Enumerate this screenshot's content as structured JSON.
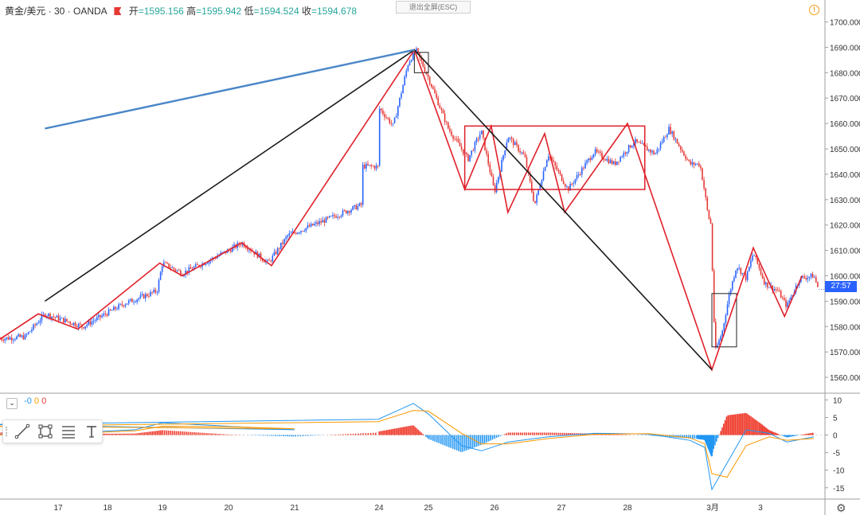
{
  "header": {
    "symbol": "黄金/美元 · 30 · OANDA",
    "open_label": "开",
    "open_value": "=1595.156",
    "high_label": "高",
    "high_value": "=1595.942",
    "low_label": "低",
    "low_value": "=1594.524",
    "close_label": "收",
    "close_value": "=1594.678"
  },
  "exit_fullscreen": "退出全屏(ESC)",
  "alert_icon": "!",
  "current_price_countdown": "27:57",
  "macd_legend": {
    "chevron": "⌄",
    "v1": "-0",
    "v2": "0",
    "v3": "0"
  },
  "settings_icon": "⚙",
  "colors": {
    "up": "#2962ff",
    "down": "#e53935",
    "pattern": "#e0202a",
    "trend": "#1a1a1a",
    "upper_line": "#4a86c8",
    "macd_pos": "#ef3b2c",
    "macd_neg": "#2196f3",
    "signal": "#ff9800"
  },
  "chart_data": [
    {
      "type": "line",
      "title": "黄金/美元 · 30 · OANDA",
      "y_axis_side": "right",
      "ylim": [
        1555,
        1703
      ],
      "y_ticks": [
        "1560.000",
        "1570.000",
        "1580.000",
        "1590.000",
        "1600.000",
        "1610.000",
        "1620.000",
        "1630.000",
        "1640.000",
        "1650.000",
        "1660.000",
        "1670.000",
        "1680.000",
        "1690.000",
        "1700.000"
      ],
      "x_ticks": [
        "17",
        "18",
        "19",
        "20",
        "21",
        "24",
        "25",
        "26",
        "27",
        "28",
        "3月",
        "3"
      ],
      "current_price": 1594.678,
      "price_path": [
        {
          "t": 16.0,
          "v": 1575
        },
        {
          "t": 16.5,
          "v": 1576
        },
        {
          "t": 16.8,
          "v": 1585
        },
        {
          "t": 17.5,
          "v": 1580
        },
        {
          "t": 18.3,
          "v": 1589
        },
        {
          "t": 18.9,
          "v": 1594
        },
        {
          "t": 19.0,
          "v": 1605
        },
        {
          "t": 19.3,
          "v": 1601
        },
        {
          "t": 19.7,
          "v": 1606
        },
        {
          "t": 20.0,
          "v": 1610
        },
        {
          "t": 20.2,
          "v": 1613
        },
        {
          "t": 20.6,
          "v": 1605
        },
        {
          "t": 20.9,
          "v": 1616
        },
        {
          "t": 21.3,
          "v": 1621
        },
        {
          "t": 21.8,
          "v": 1628
        },
        {
          "t": 22.3,
          "v": 1636
        },
        {
          "t": 22.9,
          "v": 1647
        },
        {
          "t": 23.0,
          "v": 1643
        },
        {
          "t": 23.02,
          "v": 1666
        },
        {
          "t": 23.3,
          "v": 1659
        },
        {
          "t": 23.6,
          "v": 1684
        },
        {
          "t": 23.75,
          "v": 1689
        },
        {
          "t": 24.0,
          "v": 1678
        },
        {
          "t": 24.3,
          "v": 1658
        },
        {
          "t": 24.6,
          "v": 1646
        },
        {
          "t": 24.8,
          "v": 1657
        },
        {
          "t": 25.0,
          "v": 1633
        },
        {
          "t": 25.2,
          "v": 1655
        },
        {
          "t": 25.45,
          "v": 1647
        },
        {
          "t": 25.6,
          "v": 1628
        },
        {
          "t": 25.8,
          "v": 1648
        },
        {
          "t": 26.1,
          "v": 1634
        },
        {
          "t": 26.5,
          "v": 1649
        },
        {
          "t": 26.8,
          "v": 1644
        },
        {
          "t": 27.1,
          "v": 1653
        },
        {
          "t": 27.4,
          "v": 1648
        },
        {
          "t": 27.6,
          "v": 1658
        },
        {
          "t": 27.9,
          "v": 1644
        },
        {
          "t": 28.2,
          "v": 1644
        },
        {
          "t": 28.5,
          "v": 1633
        },
        {
          "t": 28.7,
          "v": 1624
        },
        {
          "t": 28.9,
          "v": 1620
        },
        {
          "t": 29.0,
          "v": 1598
        },
        {
          "t": 29.05,
          "v": 1570
        },
        {
          "t": 29.2,
          "v": 1578
        },
        {
          "t": 29.35,
          "v": 1593
        },
        {
          "t": 29.5,
          "v": 1604
        },
        {
          "t": 29.7,
          "v": 1599
        },
        {
          "t": 29.85,
          "v": 1609
        },
        {
          "t": 30.1,
          "v": 1597
        },
        {
          "t": 30.4,
          "v": 1594
        },
        {
          "t": 30.6,
          "v": 1588
        },
        {
          "t": 30.9,
          "v": 1599
        },
        {
          "t": 31.2,
          "v": 1600
        },
        {
          "t": 31.3,
          "v": 1594.7
        }
      ],
      "zigzag": [
        {
          "t": 16.0,
          "v": 1573
        },
        {
          "t": 16.7,
          "v": 1585
        },
        {
          "t": 17.4,
          "v": 1579
        },
        {
          "t": 18.95,
          "v": 1605
        },
        {
          "t": 19.3,
          "v": 1600
        },
        {
          "t": 20.2,
          "v": 1613
        },
        {
          "t": 20.65,
          "v": 1604
        },
        {
          "t": 23.72,
          "v": 1689
        },
        {
          "t": 24.55,
          "v": 1634
        },
        {
          "t": 24.95,
          "v": 1659
        },
        {
          "t": 25.2,
          "v": 1625
        },
        {
          "t": 25.75,
          "v": 1656
        },
        {
          "t": 26.05,
          "v": 1625
        },
        {
          "t": 27.0,
          "v": 1660
        },
        {
          "t": 28.95,
          "v": 1563
        },
        {
          "t": 29.85,
          "v": 1611
        },
        {
          "t": 30.55,
          "v": 1584
        },
        {
          "t": 30.95,
          "v": 1600
        }
      ],
      "range_box": {
        "t1": 24.55,
        "t2": 27.25,
        "v1": 1634,
        "v2": 1659
      },
      "boxes": [
        {
          "t1": 23.72,
          "t2": 24.0,
          "v1": 1680,
          "v2": 1688
        },
        {
          "t1": 28.95,
          "t2": 29.5,
          "v1": 1572,
          "v2": 1593
        }
      ],
      "trend_lines": [
        {
          "t1": 15.8,
          "v1": 1590,
          "t2": 23.72,
          "v2": 1689,
          "style": "black"
        },
        {
          "t1": 23.72,
          "v1": 1689,
          "t2": 28.95,
          "v2": 1563,
          "style": "black"
        },
        {
          "t1": 15.8,
          "v1": 1658,
          "t2": 23.72,
          "v2": 1689,
          "style": "blue"
        }
      ]
    },
    {
      "type": "area",
      "title": "MACD",
      "ylim": [
        -18,
        11
      ],
      "y_ticks": [
        "10",
        "5",
        "0",
        "-5",
        "-10",
        "-15"
      ],
      "macd_line": [
        {
          "t": 16.0,
          "v": 0
        },
        {
          "t": 17.0,
          "v": 0.5
        },
        {
          "t": 18.5,
          "v": 1.5
        },
        {
          "t": 19.0,
          "v": 3.5
        },
        {
          "t": 20.0,
          "v": 2.5
        },
        {
          "t": 21.0,
          "v": 1.5
        },
        {
          "t": 22.0,
          "v": 3.0
        },
        {
          "t": 23.0,
          "v": 4.5
        },
        {
          "t": 23.7,
          "v": 9.0
        },
        {
          "t": 24.0,
          "v": 6.0
        },
        {
          "t": 24.5,
          "v": -3.0
        },
        {
          "t": 24.8,
          "v": -4.5
        },
        {
          "t": 25.2,
          "v": -2.0
        },
        {
          "t": 25.8,
          "v": -0.5
        },
        {
          "t": 26.5,
          "v": 0.5
        },
        {
          "t": 27.3,
          "v": 0.3
        },
        {
          "t": 27.9,
          "v": -1.5
        },
        {
          "t": 28.5,
          "v": -3.5
        },
        {
          "t": 28.95,
          "v": -15.5
        },
        {
          "t": 29.3,
          "v": -8.0
        },
        {
          "t": 29.7,
          "v": 1.5
        },
        {
          "t": 30.2,
          "v": 0.5
        },
        {
          "t": 30.6,
          "v": -2.0
        },
        {
          "t": 31.2,
          "v": -0.5
        }
      ],
      "signal_line": [
        {
          "t": 16.0,
          "v": 0
        },
        {
          "t": 17.0,
          "v": 0.3
        },
        {
          "t": 18.5,
          "v": 1.2
        },
        {
          "t": 19.0,
          "v": 2.5
        },
        {
          "t": 20.0,
          "v": 2.4
        },
        {
          "t": 21.0,
          "v": 1.8
        },
        {
          "t": 22.0,
          "v": 2.5
        },
        {
          "t": 23.0,
          "v": 3.8
        },
        {
          "t": 23.7,
          "v": 7.0
        },
        {
          "t": 24.0,
          "v": 6.8
        },
        {
          "t": 24.5,
          "v": 0.5
        },
        {
          "t": 24.8,
          "v": -2.5
        },
        {
          "t": 25.2,
          "v": -2.5
        },
        {
          "t": 25.8,
          "v": -1.0
        },
        {
          "t": 26.5,
          "v": 0.2
        },
        {
          "t": 27.3,
          "v": 0.4
        },
        {
          "t": 27.9,
          "v": -0.8
        },
        {
          "t": 28.5,
          "v": -2.5
        },
        {
          "t": 28.95,
          "v": -11.0
        },
        {
          "t": 29.3,
          "v": -12.0
        },
        {
          "t": 29.7,
          "v": -3.0
        },
        {
          "t": 30.2,
          "v": -0.5
        },
        {
          "t": 30.6,
          "v": -1.5
        },
        {
          "t": 31.2,
          "v": -1.0
        }
      ]
    }
  ]
}
